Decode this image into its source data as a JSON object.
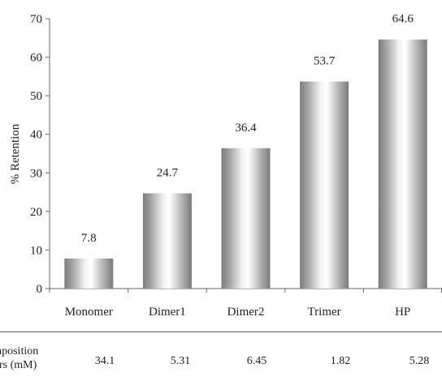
{
  "chart_data": {
    "type": "bar",
    "categories": [
      "Monomer",
      "Dimer1",
      "Dimer2",
      "Trimer",
      "HP"
    ],
    "values": [
      7.8,
      24.7,
      36.4,
      53.7,
      64.6
    ],
    "data_labels": [
      "7.8",
      "24.7",
      "36.4",
      "53.7",
      "64.6"
    ],
    "ylabel": "% Retention",
    "xlabel": "",
    "ylim": [
      0,
      70
    ],
    "yticks": [
      0,
      10,
      20,
      30,
      40,
      50,
      60,
      70
    ],
    "grid": false,
    "bar_style": "gray cylindrical gradient"
  },
  "table": {
    "label": "composition\nhours (mM)",
    "values": [
      "34.1",
      "5.31",
      "6.45",
      "1.82",
      "5.28"
    ]
  }
}
